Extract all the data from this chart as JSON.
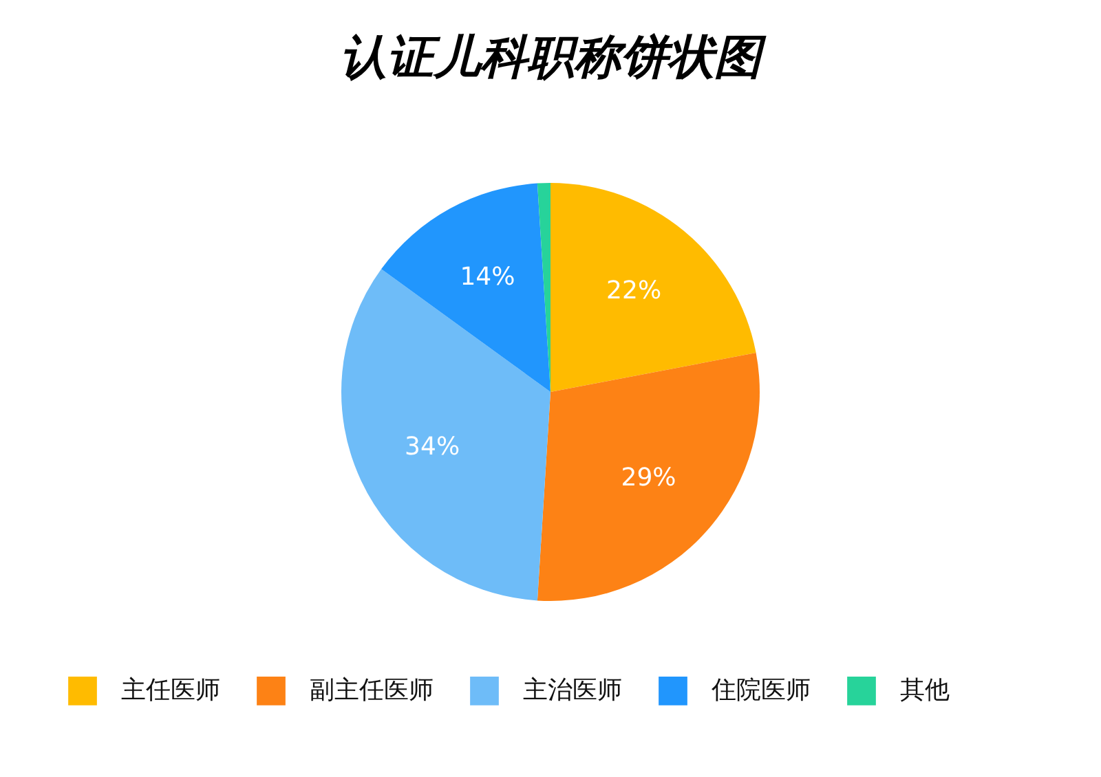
{
  "chart_data": {
    "type": "pie",
    "title": "认证儿科职称饼状图",
    "categories": [
      "主任医师",
      "副主任医师",
      "主治医师",
      "住院医师",
      "其他"
    ],
    "values": [
      22,
      29,
      34,
      14,
      1
    ],
    "colors": [
      "#ffbb00",
      "#fd8215",
      "#6ebcf8",
      "#2196fd",
      "#27d39a"
    ],
    "value_labels": [
      "22%",
      "29%",
      "34%",
      "14%",
      null
    ],
    "legend": "bottom"
  }
}
